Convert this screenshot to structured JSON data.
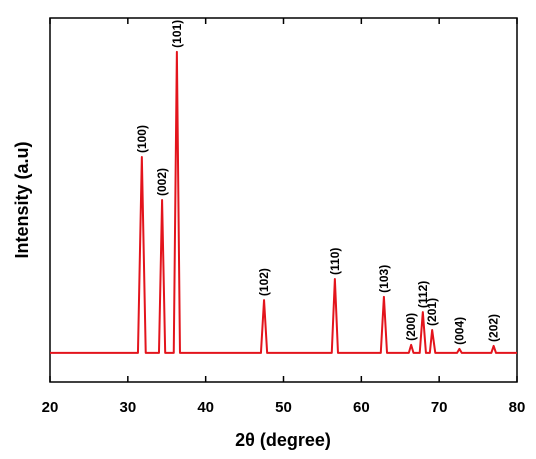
{
  "chart_data": {
    "type": "line",
    "xlabel": "2θ (degree)",
    "ylabel": "Intensity (a.u)",
    "xlim": [
      20,
      80
    ],
    "xticks": [
      20,
      30,
      40,
      50,
      60,
      70,
      80
    ],
    "ylim": [
      0,
      100
    ],
    "series": [
      {
        "color": "#e3141c",
        "x": [
          20,
          31.3,
          31.8,
          32.3,
          34.0,
          34.4,
          34.8,
          35.9,
          36.3,
          36.7,
          47.1,
          47.5,
          47.9,
          56.2,
          56.6,
          57.0,
          62.5,
          62.9,
          63.3,
          66.1,
          66.4,
          66.7,
          67.5,
          67.9,
          68.3,
          68.8,
          69.1,
          69.5,
          72.3,
          72.6,
          72.9,
          76.7,
          77.0,
          77.3,
          80
        ],
        "values": [
          8,
          8,
          61.8,
          8,
          8,
          50,
          8,
          8,
          90.7,
          8,
          8,
          22.5,
          8,
          8,
          28.3,
          8,
          8,
          23.4,
          8,
          8,
          10.2,
          8,
          8,
          19.2,
          8,
          8,
          14.3,
          8,
          8,
          9.1,
          8,
          8,
          9.9,
          8,
          8
        ]
      }
    ],
    "annotations": [
      {
        "text": "(100)",
        "x": 31.8,
        "y": 61.8
      },
      {
        "text": "(002)",
        "x": 34.4,
        "y": 50
      },
      {
        "text": "(101)",
        "x": 36.3,
        "y": 90.7
      },
      {
        "text": "(102)",
        "x": 47.5,
        "y": 22.5
      },
      {
        "text": "(110)",
        "x": 56.6,
        "y": 28.3
      },
      {
        "text": "(103)",
        "x": 62.9,
        "y": 23.4
      },
      {
        "text": "(200)",
        "x": 66.4,
        "y": 10.2
      },
      {
        "text": "(112)",
        "x": 67.9,
        "y": 19.2
      },
      {
        "text": "(201)",
        "x": 69.1,
        "y": 14.3
      },
      {
        "text": "(004)",
        "x": 72.6,
        "y": 9.1
      },
      {
        "text": "(202)",
        "x": 77.0,
        "y": 9.9
      }
    ]
  }
}
